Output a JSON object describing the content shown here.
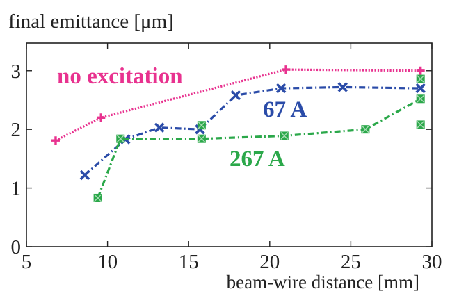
{
  "chart_data": {
    "type": "line",
    "ylabel": "final emittance [μm]",
    "xlabel": "beam-wire distance [mm]",
    "xlim": [
      5,
      30
    ],
    "ylim": [
      0,
      3.4
    ],
    "xticks": [
      "5",
      "10",
      "15",
      "20",
      "25",
      "30"
    ],
    "yticks": [
      "0",
      "1",
      "2",
      "3"
    ],
    "grid": false,
    "series": [
      {
        "name": "no excitation",
        "color": "#e8328f",
        "marker": "plus",
        "line": "dotted",
        "x": [
          6.8,
          9.6,
          21.0,
          29.3
        ],
        "y": [
          1.81,
          2.2,
          3.02,
          3.0
        ]
      },
      {
        "name": "67 A",
        "color": "#2a4ba8",
        "marker": "x",
        "line": "dashdot",
        "x": [
          8.6,
          11.1,
          13.2,
          15.7,
          17.9,
          20.7,
          24.5,
          29.3
        ],
        "y": [
          1.22,
          1.83,
          2.03,
          2.0,
          2.58,
          2.7,
          2.72,
          2.7
        ]
      },
      {
        "name": "267 A",
        "color": "#2ba84a",
        "marker": "square",
        "line": "dashdot",
        "x": [
          9.4,
          10.8,
          15.8,
          20.9,
          25.9,
          29.3
        ],
        "y": [
          0.83,
          1.84,
          1.84,
          1.89,
          2.0,
          2.52
        ],
        "extra_points": [
          {
            "x": 15.8,
            "y": 2.07
          },
          {
            "x": 29.3,
            "y": 2.08
          },
          {
            "x": 29.3,
            "y": 2.86
          }
        ]
      }
    ]
  }
}
